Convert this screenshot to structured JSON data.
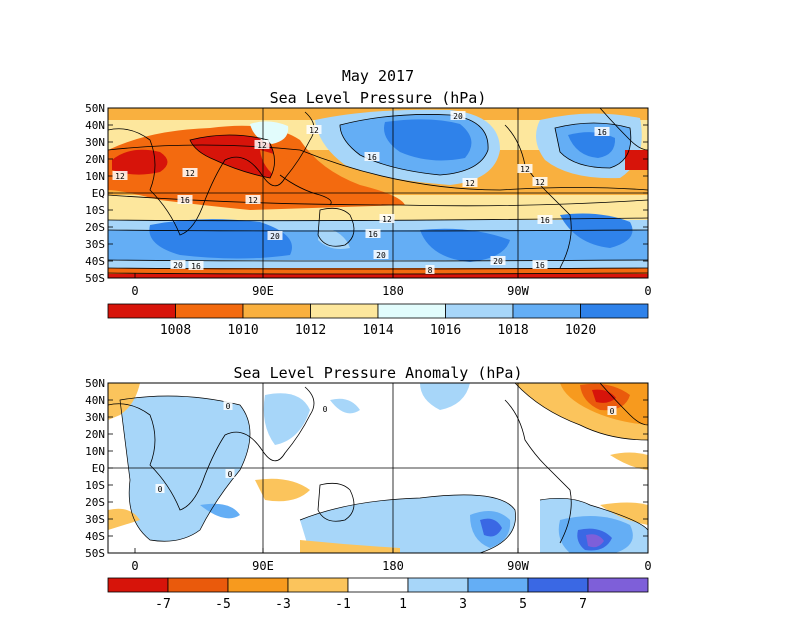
{
  "chart_data": [
    {
      "type": "heatmap",
      "title": "May 2017",
      "subtitle": "Sea Level Pressure (hPa)",
      "xlabel": "",
      "ylabel": "",
      "x_ticks": [
        "0",
        "90E",
        "180",
        "90W",
        "0"
      ],
      "y_ticks": [
        "50N",
        "40N",
        "30N",
        "20N",
        "10N",
        "EQ",
        "10S",
        "20S",
        "30S",
        "40S",
        "50S"
      ],
      "ylim": [
        -50,
        50
      ],
      "grid": true,
      "colorbar": {
        "labels": [
          "1008",
          "1010",
          "1012",
          "1014",
          "1016",
          "1018",
          "1020"
        ],
        "colors": [
          "#d7140a",
          "#f36a0f",
          "#f9b03f",
          "#fde79d",
          "#e2fcfc",
          "#a7d6f9",
          "#64aef5",
          "#2f82ea"
        ]
      },
      "contour_labels": [
        "12",
        "12",
        "12",
        "12",
        "12",
        "12",
        "12",
        "12",
        "12",
        "16",
        "16",
        "16",
        "16",
        "16",
        "16",
        "16",
        "20",
        "20",
        "20",
        "20",
        "20",
        "8"
      ]
    },
    {
      "type": "heatmap",
      "title": "Sea Level Pressure Anomaly (hPa)",
      "xlabel": "",
      "ylabel": "",
      "x_ticks": [
        "0",
        "90E",
        "180",
        "90W",
        "0"
      ],
      "y_ticks": [
        "50N",
        "40N",
        "30N",
        "20N",
        "10N",
        "EQ",
        "10S",
        "20S",
        "30S",
        "40S",
        "50S"
      ],
      "ylim": [
        -50,
        50
      ],
      "grid": true,
      "colorbar": {
        "labels": [
          "-7",
          "-5",
          "-3",
          "-1",
          "1",
          "3",
          "5",
          "7"
        ],
        "colors": [
          "#d7140a",
          "#ea5a0c",
          "#f79a1e",
          "#fbc45c",
          "#ffffff",
          "#a7d6f9",
          "#64aef5",
          "#3a68e4",
          "#7e5fd9"
        ]
      },
      "contour_labels": [
        "0",
        "0",
        "0",
        "0",
        "0"
      ]
    }
  ]
}
